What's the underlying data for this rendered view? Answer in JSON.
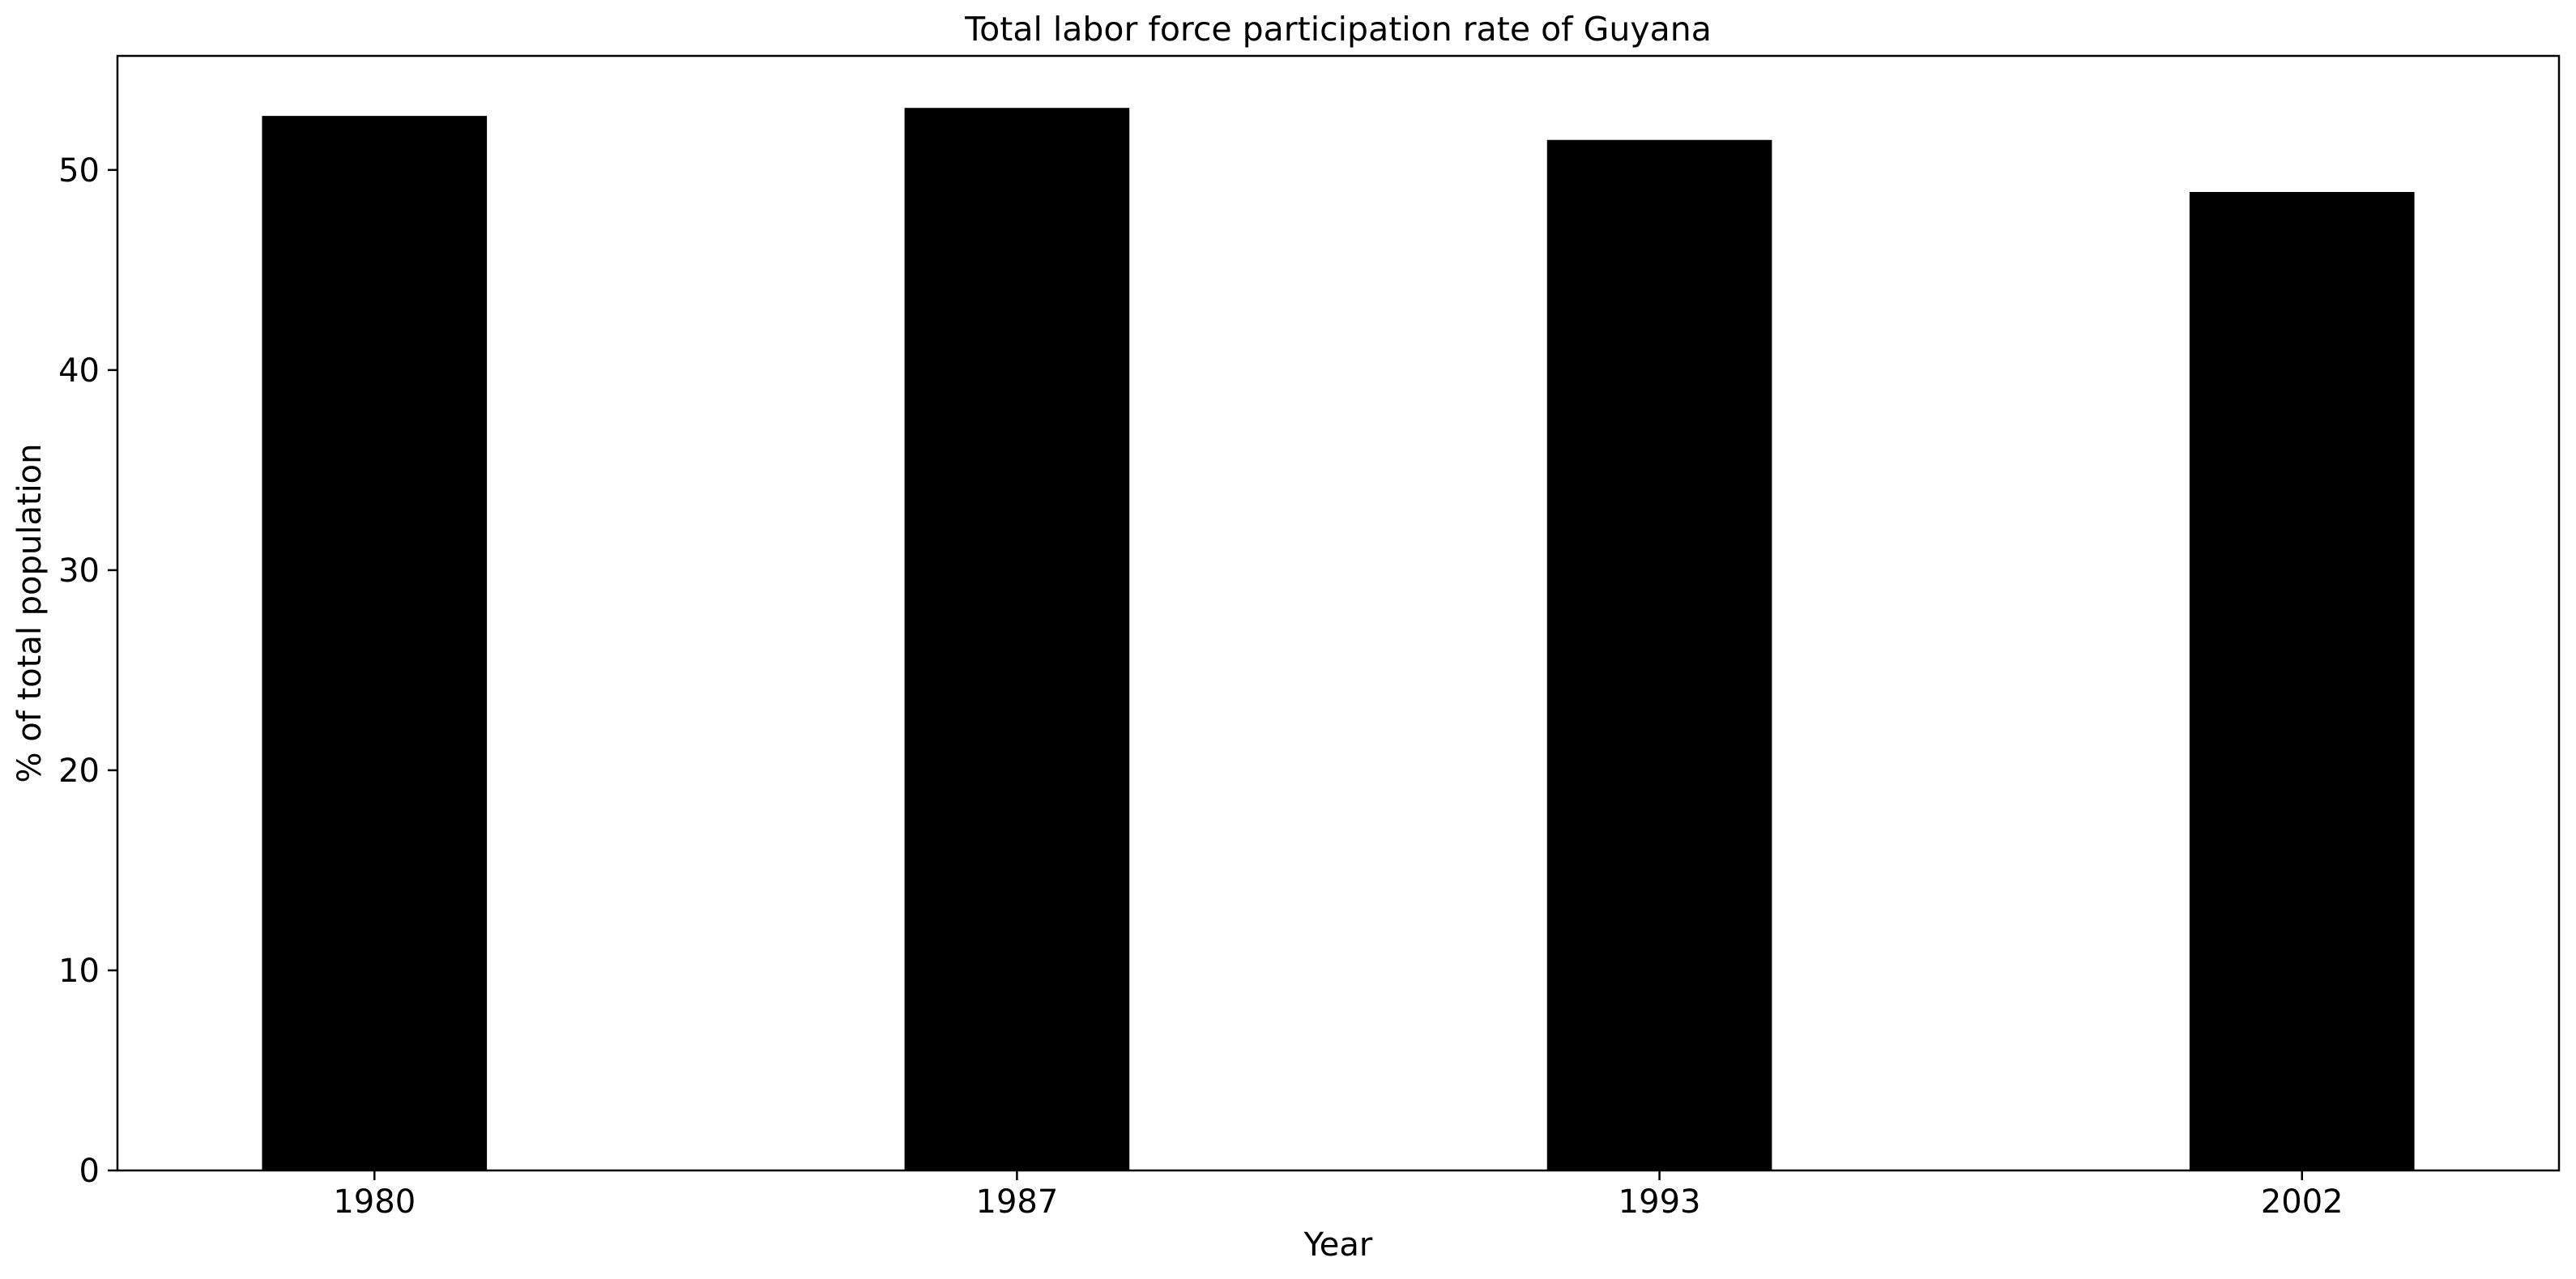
{
  "chart_data": {
    "type": "bar",
    "title": "Total labor force participation rate of Guyana",
    "xlabel": "Year",
    "ylabel": "% of total population",
    "categories": [
      "1980",
      "1987",
      "1993",
      "2002"
    ],
    "values": [
      52.7,
      53.1,
      51.5,
      48.9
    ],
    "ylim": [
      0,
      55.7
    ],
    "yticks": [
      0,
      10,
      20,
      30,
      40,
      50
    ],
    "grid": false,
    "bar_color": "#000000"
  }
}
